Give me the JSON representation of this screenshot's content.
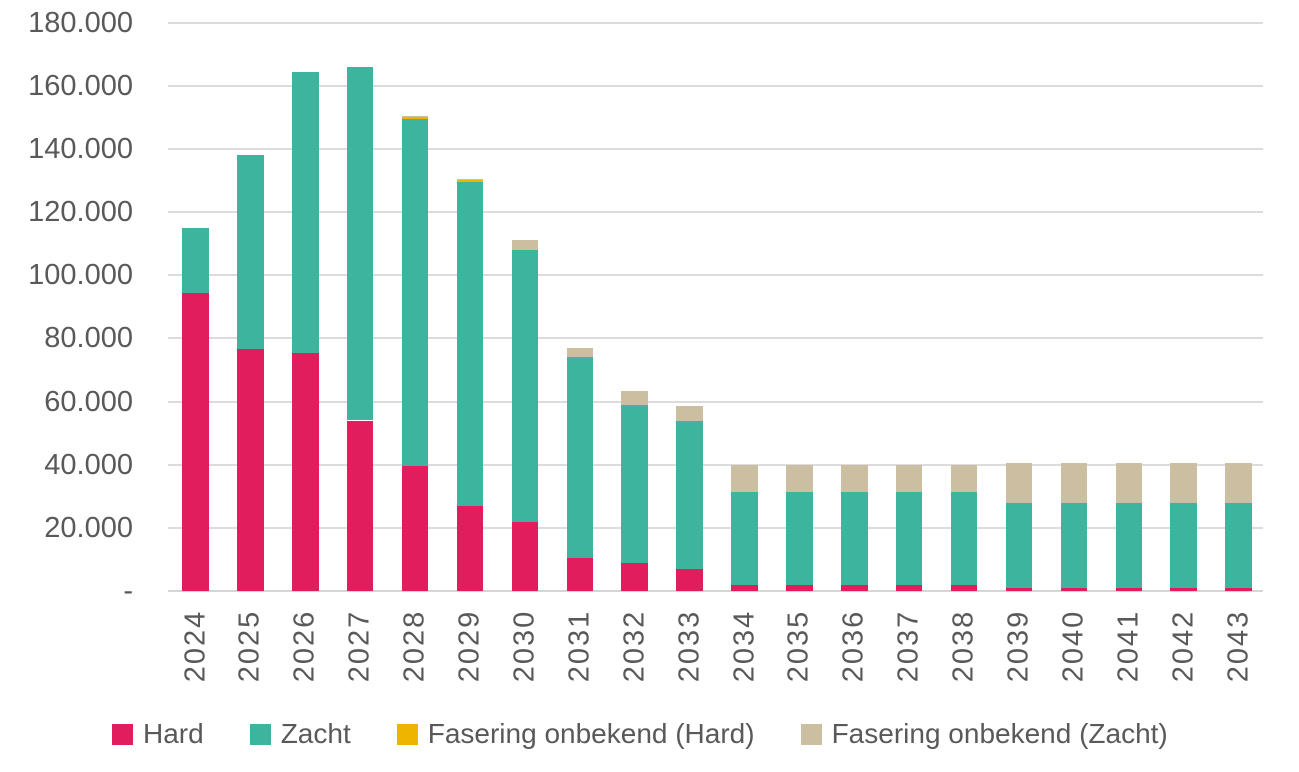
{
  "chart_data": {
    "type": "bar",
    "stacked": true,
    "title": "",
    "xlabel": "",
    "ylabel": "",
    "categories": [
      "2024",
      "2025",
      "2026",
      "2027",
      "2028",
      "2029",
      "2030",
      "2031",
      "2032",
      "2033",
      "2034",
      "2035",
      "2036",
      "2037",
      "2038",
      "2039",
      "2040",
      "2041",
      "2042",
      "2043"
    ],
    "series": [
      {
        "name": "Hard",
        "color": "#E11D5E",
        "values": [
          94500,
          76500,
          75500,
          54000,
          39500,
          27000,
          22000,
          10500,
          9000,
          7000,
          2000,
          2000,
          2000,
          2000,
          2000,
          1000,
          1000,
          1000,
          1000,
          1000
        ]
      },
      {
        "name": "Zacht",
        "color": "#3CB49E",
        "values": [
          20500,
          61500,
          89000,
          112000,
          110000,
          102500,
          86000,
          63500,
          50000,
          47000,
          29500,
          29500,
          29500,
          29500,
          29500,
          27000,
          27000,
          27000,
          27000,
          27000
        ]
      },
      {
        "name": "Fasering onbekend (Hard)",
        "color": "#EDB400",
        "values": [
          0,
          0,
          0,
          0,
          800,
          800,
          0,
          0,
          0,
          0,
          0,
          0,
          0,
          0,
          0,
          0,
          0,
          0,
          0,
          0
        ]
      },
      {
        "name": "Fasering onbekend (Zacht)",
        "color": "#CCBEA0",
        "values": [
          0,
          0,
          0,
          0,
          300,
          300,
          3300,
          3000,
          4500,
          4500,
          8500,
          8500,
          8500,
          8500,
          8500,
          12500,
          12500,
          12500,
          12500,
          12500
        ]
      }
    ],
    "ylim": [
      0,
      180000
    ],
    "y_ticks": [
      {
        "label": "180.000",
        "value": 180000
      },
      {
        "label": "160.000",
        "value": 160000
      },
      {
        "label": "140.000",
        "value": 140000
      },
      {
        "label": "120.000",
        "value": 120000
      },
      {
        "label": "100.000",
        "value": 100000
      },
      {
        "label": "80.000",
        "value": 80000
      },
      {
        "label": "60.000",
        "value": 60000
      },
      {
        "label": "40.000",
        "value": 40000
      },
      {
        "label": "20.000",
        "value": 20000
      },
      {
        "label": "-",
        "value": 0
      }
    ],
    "grid": true,
    "legend_position": "bottom"
  },
  "colors": {
    "gridline": "#DCDCDC",
    "axis_text": "#595959",
    "background": "#FFFFFF"
  }
}
